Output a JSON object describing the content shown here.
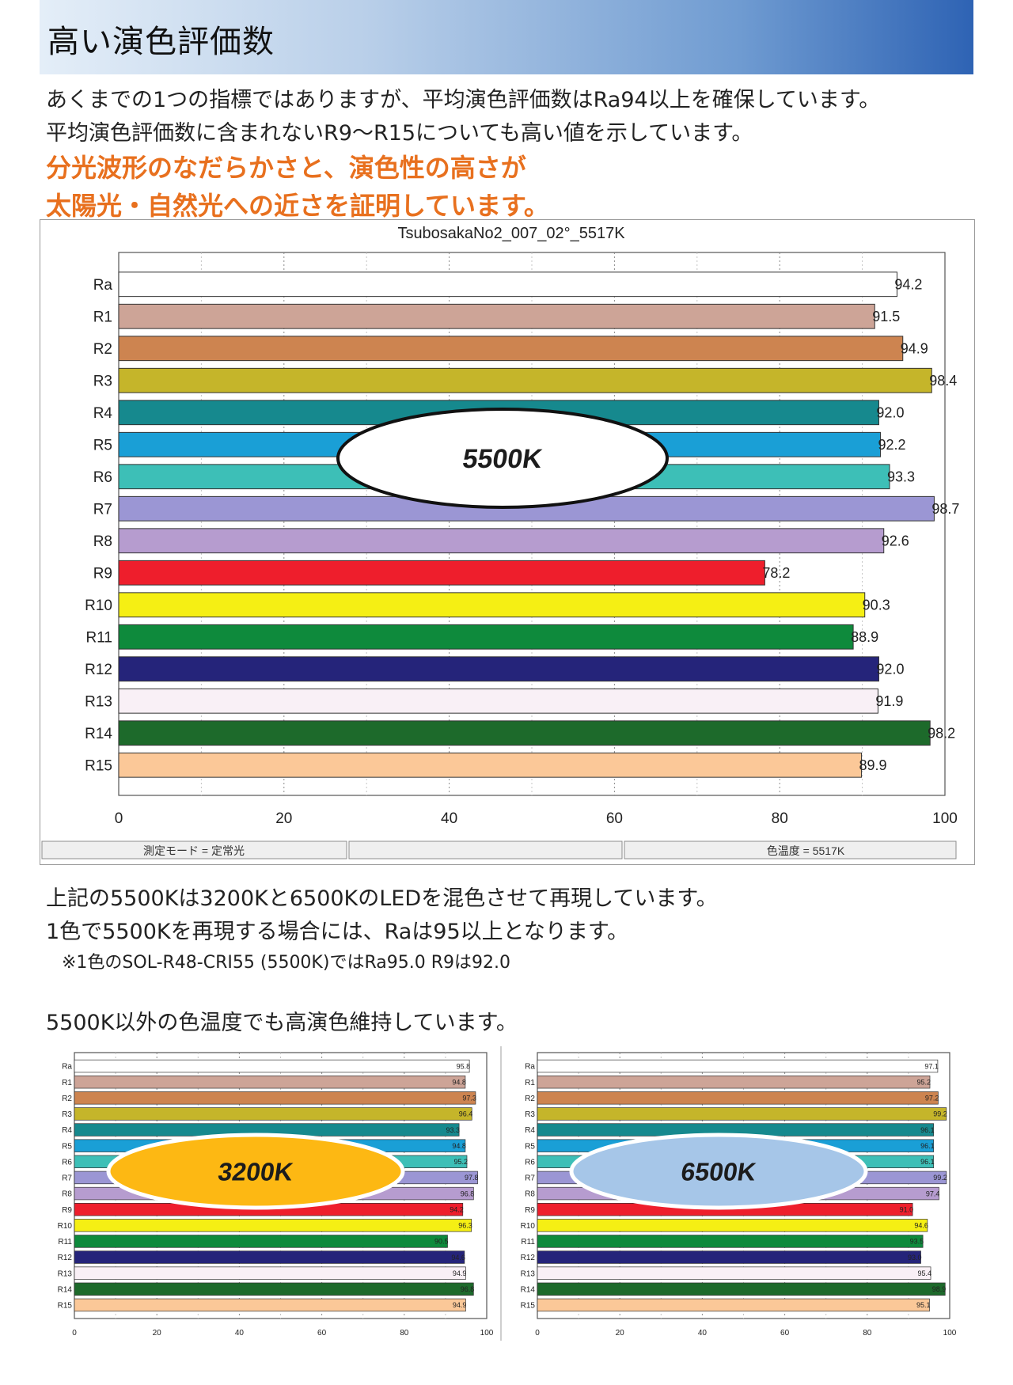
{
  "header": {
    "title": "高い演色評価数"
  },
  "intro": {
    "line1": "あくまでの1つの指標ではありますが、平均演色評価数はRa94以上を確保しています。",
    "line2": "平均演色評価数に含まれないR9～R15についても高い値を示しています。",
    "highlight1": "分光波形のなだらかさと、演色性の高さが",
    "highlight2": "太陽光・自然光への近さを証明しています。"
  },
  "main_footer": {
    "mode": "測定モード = 定常光",
    "temp": "色温度 = 5517K"
  },
  "notes": {
    "line1": "上記の5500Kは3200Kと6500KのLEDを混色させて再現しています。",
    "line2": "1色で5500Kを再現する場合には、Raは95以上となります。",
    "line3": "※1色のSOL-R48-CRI55 (5500K)ではRa95.0 R9は92.0",
    "line4": "5500K以外の色温度でも高演色維持しています。"
  },
  "colors": {
    "bars": [
      "#ffffff",
      "#cda497",
      "#cd8450",
      "#c5b52a",
      "#16898e",
      "#1a9fd6",
      "#3dbfb7",
      "#9b96d4",
      "#b69ccf",
      "#ee1e2c",
      "#f5ef14",
      "#0e8a3c",
      "#25247a",
      "#f9f0f6",
      "#1d6a2b",
      "#fbc898"
    ],
    "label_white": [
      false,
      false,
      false,
      false,
      false,
      false,
      false,
      false,
      false,
      false,
      false,
      false,
      false,
      false,
      false,
      false
    ]
  },
  "chart_data": [
    {
      "type": "bar",
      "title": "TsubosakaNo2_007_02°_5517K",
      "badge": "5500K",
      "badge_color": "#ffffff",
      "categories": [
        "Ra",
        "R1",
        "R2",
        "R3",
        "R4",
        "R5",
        "R6",
        "R7",
        "R8",
        "R9",
        "R10",
        "R11",
        "R12",
        "R13",
        "R14",
        "R15"
      ],
      "values": [
        94.2,
        91.5,
        94.9,
        98.4,
        92.0,
        92.2,
        93.3,
        98.7,
        92.6,
        78.2,
        90.3,
        88.9,
        92.0,
        91.9,
        98.2,
        89.9
      ],
      "value_labels": [
        "94.2",
        "91.5",
        "94.9",
        "98.4",
        "92.0",
        "92.2",
        "93.3",
        "98.7",
        "92.6",
        "78.2",
        "90.3",
        "88.9",
        "92.0",
        "91.9",
        "98.2",
        "89.9"
      ],
      "xlim": [
        0,
        100
      ],
      "xticks": [
        "0",
        "20",
        "40",
        "60",
        "80",
        "100"
      ],
      "grid": true
    },
    {
      "type": "bar",
      "title": "",
      "badge": "3200K",
      "badge_color": "#fdb813",
      "categories": [
        "Ra",
        "R1",
        "R2",
        "R3",
        "R4",
        "R5",
        "R6",
        "R7",
        "R8",
        "R9",
        "R10",
        "R11",
        "R12",
        "R13",
        "R14",
        "R15"
      ],
      "values": [
        95.8,
        94.8,
        97.3,
        96.4,
        93.3,
        94.8,
        95.2,
        97.8,
        96.8,
        94.2,
        96.3,
        90.5,
        94.6,
        94.9,
        96.8,
        94.9
      ],
      "value_labels": [
        "95.8",
        "94.8",
        "97.3",
        "96.4",
        "93.3",
        "94.8",
        "95.2",
        "97.8",
        "96.8",
        "94.2",
        "96.3",
        "90.5",
        "94.6",
        "94.9",
        "96.8",
        "94.9"
      ],
      "xlim": [
        0,
        100
      ],
      "xticks": [
        "0",
        "20",
        "40",
        "60",
        "80",
        "100"
      ],
      "grid": true
    },
    {
      "type": "bar",
      "title": "",
      "badge": "6500K",
      "badge_color": "#a6c6e8",
      "categories": [
        "Ra",
        "R1",
        "R2",
        "R3",
        "R4",
        "R5",
        "R6",
        "R7",
        "R8",
        "R9",
        "R10",
        "R11",
        "R12",
        "R13",
        "R14",
        "R15"
      ],
      "values": [
        97.1,
        95.2,
        97.2,
        99.2,
        96.1,
        96.1,
        96.1,
        99.2,
        97.4,
        91.0,
        94.6,
        93.5,
        93.0,
        95.4,
        98.9,
        95.1
      ],
      "value_labels": [
        "97.1",
        "95.2",
        "97.2",
        "99.2",
        "96.1",
        "96.1",
        "96.1",
        "99.2",
        "97.4",
        "91.0",
        "94.6",
        "93.5",
        "93.0",
        "95.4",
        "98.9",
        "95.1"
      ],
      "xlim": [
        0,
        100
      ],
      "xticks": [
        "0",
        "20",
        "40",
        "60",
        "80",
        "100"
      ],
      "grid": true
    }
  ]
}
